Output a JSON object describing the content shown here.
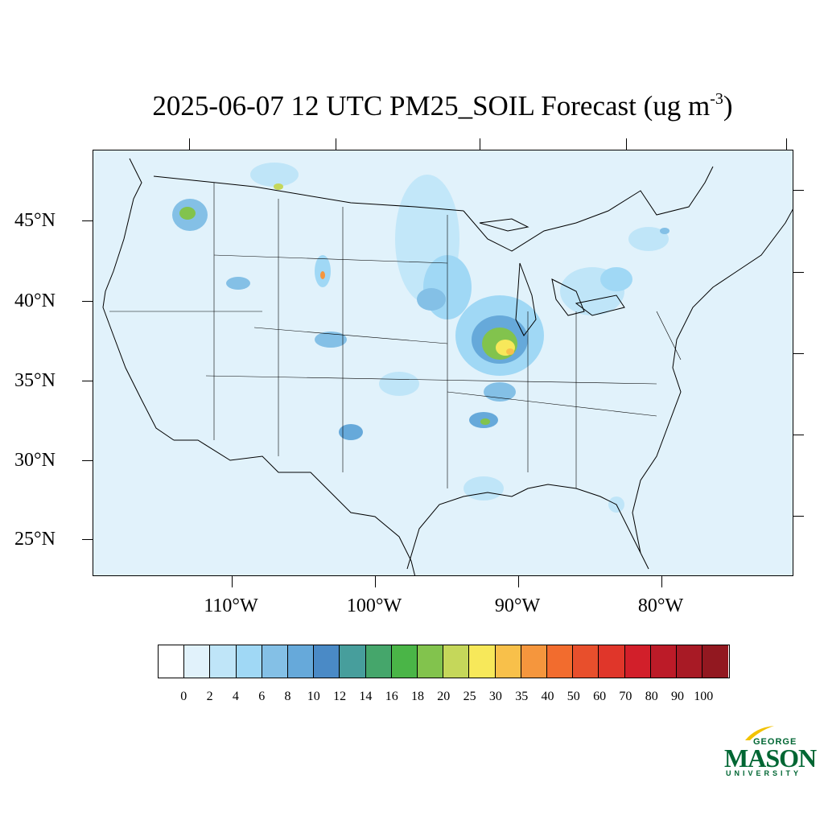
{
  "title": {
    "main": "2025-06-07 12 UTC PM25_SOIL Forecast (ug m",
    "superscript": "-3",
    "close": ")"
  },
  "map": {
    "background_color": "#e1f2fb",
    "latitude_labels": [
      "45°N",
      "40°N",
      "35°N",
      "30°N",
      "25°N"
    ],
    "longitude_labels": [
      "110°W",
      "100°W",
      "90°W",
      "80°W"
    ]
  },
  "colorbar": {
    "levels": [
      "0",
      "2",
      "4",
      "6",
      "8",
      "10",
      "12",
      "14",
      "16",
      "18",
      "20",
      "25",
      "30",
      "35",
      "40",
      "50",
      "60",
      "70",
      "80",
      "90",
      "100"
    ],
    "colors": [
      "#ffffff",
      "#e1f2fb",
      "#bfe5f8",
      "#a0d8f5",
      "#84c0e6",
      "#66a9da",
      "#4a8ac6",
      "#479e9c",
      "#45a66b",
      "#4ab547",
      "#82c34d",
      "#c5d75a",
      "#f7e85a",
      "#f8c04a",
      "#f5963d",
      "#f26c2e",
      "#e84f2c",
      "#e0362a",
      "#d21f2a",
      "#bc1b28",
      "#a81a25",
      "#921820"
    ]
  },
  "logo": {
    "line1": "GEORGE",
    "line2": "MASON",
    "line3": "UNIVERSITY",
    "color": "#006633",
    "accent": "#f2c200"
  }
}
